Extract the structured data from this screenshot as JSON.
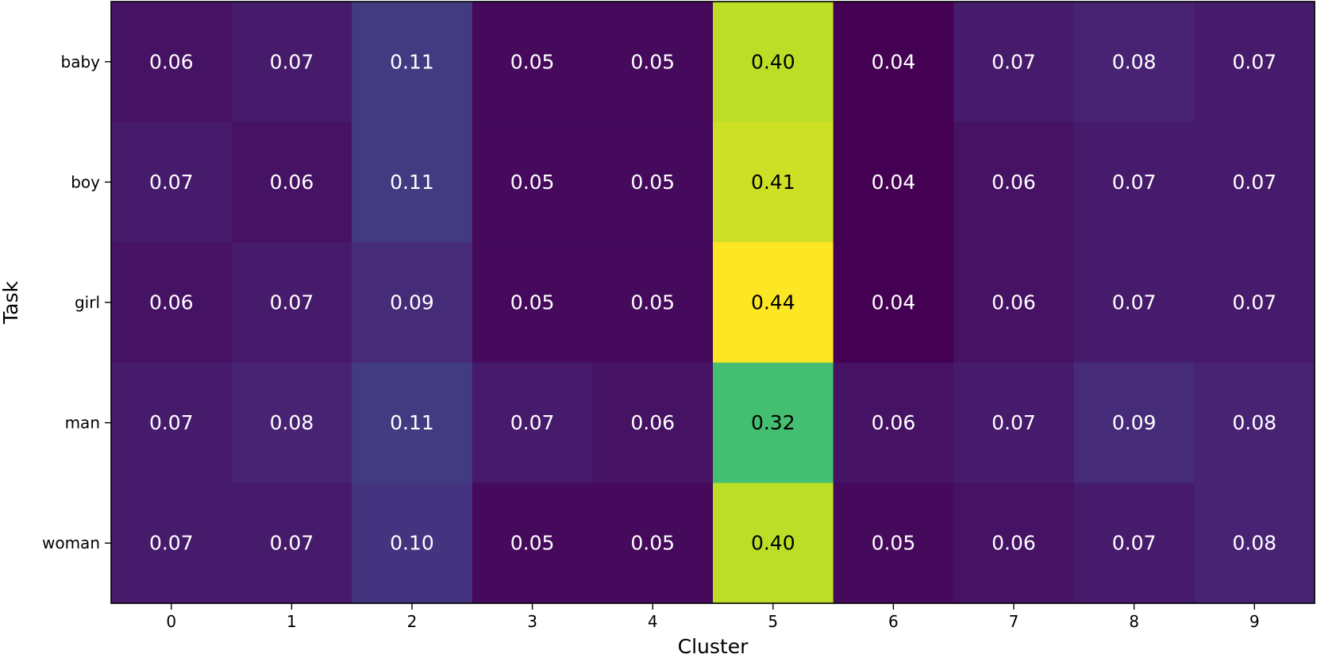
{
  "chart_data": {
    "type": "heatmap",
    "title": "",
    "xlabel": "Cluster",
    "ylabel": "Task",
    "x_categories": [
      "0",
      "1",
      "2",
      "3",
      "4",
      "5",
      "6",
      "7",
      "8",
      "9"
    ],
    "y_categories": [
      "baby",
      "boy",
      "girl",
      "man",
      "woman"
    ],
    "values": [
      [
        0.06,
        0.07,
        0.11,
        0.05,
        0.05,
        0.4,
        0.04,
        0.07,
        0.08,
        0.07
      ],
      [
        0.07,
        0.06,
        0.11,
        0.05,
        0.05,
        0.41,
        0.04,
        0.06,
        0.07,
        0.07
      ],
      [
        0.06,
        0.07,
        0.09,
        0.05,
        0.05,
        0.44,
        0.04,
        0.06,
        0.07,
        0.07
      ],
      [
        0.07,
        0.08,
        0.11,
        0.07,
        0.06,
        0.32,
        0.06,
        0.07,
        0.09,
        0.08
      ],
      [
        0.07,
        0.07,
        0.1,
        0.05,
        0.05,
        0.4,
        0.05,
        0.06,
        0.07,
        0.08
      ]
    ],
    "value_format": "2 decimals",
    "colormap": "viridis",
    "colorbar": false,
    "grid": false
  }
}
